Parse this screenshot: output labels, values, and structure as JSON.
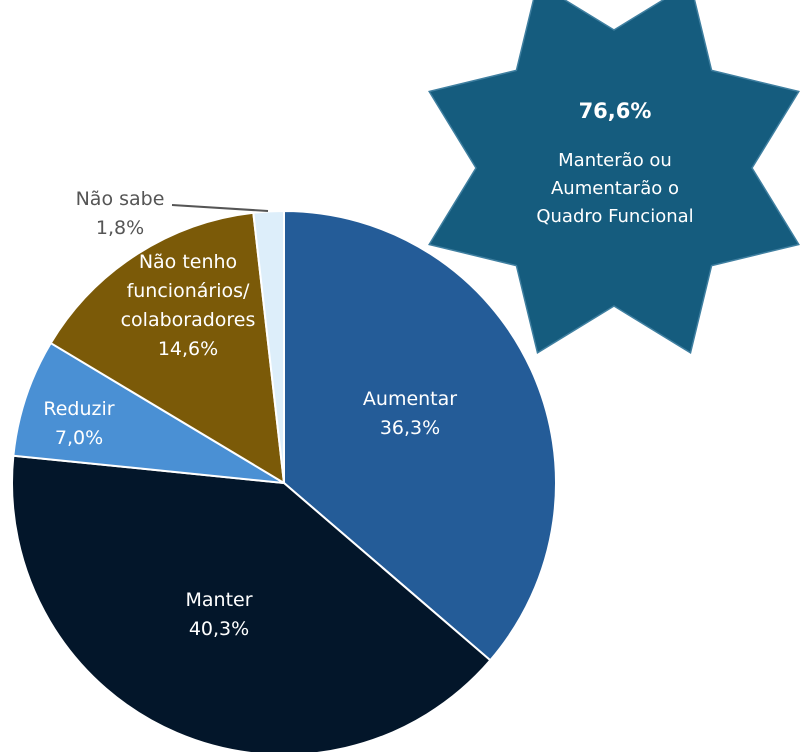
{
  "chart_data": {
    "type": "pie",
    "categories": [
      "Aumentar",
      "Manter",
      "Reduzir",
      "Não tenho funcionários/ colaboradores",
      "Não sabe"
    ],
    "values": [
      36.3,
      40.3,
      7.0,
      14.6,
      1.8
    ],
    "value_labels": [
      "36,3%",
      "40,3%",
      "7,0%",
      "14,6%",
      "1,8%"
    ],
    "label_lines": [
      [
        "Aumentar",
        "36,3%"
      ],
      [
        "Manter",
        "40,3%"
      ],
      [
        "Reduzir",
        "7,0%"
      ],
      [
        "Não tenho",
        "funcionários/",
        "colaboradores",
        "14,6%"
      ],
      [
        "Não sabe",
        "1,8%"
      ]
    ],
    "colors": [
      "#245c98",
      "#03162a",
      "#4a90d4",
      "#7b5a08",
      "#ddeefa"
    ],
    "label_colors": [
      "#ffffff",
      "#ffffff",
      "#ffffff",
      "#ffffff",
      "#555555"
    ],
    "start": "12 o'clock",
    "direction": "clockwise"
  },
  "callout": {
    "value": "76,6%",
    "lines": [
      "Manterão ou",
      "Aumentarão o",
      "Quadro Funcional"
    ],
    "color": "#155c7e"
  }
}
